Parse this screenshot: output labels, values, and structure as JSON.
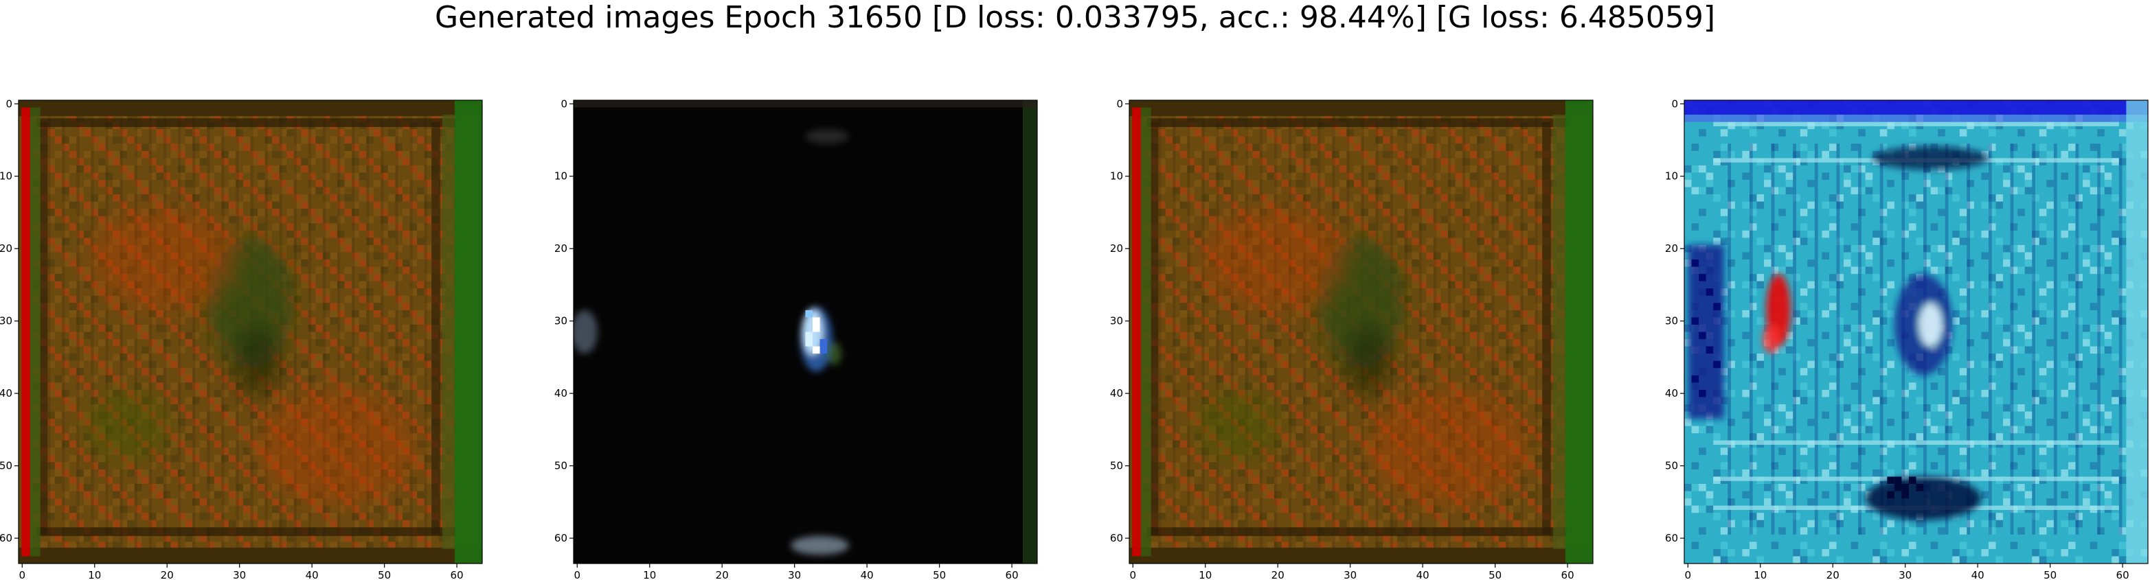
{
  "title": "Generated images Epoch 31650 [D loss: 0.033795, acc.: 98.44%] [G loss: 6.485059]",
  "panels": [
    {
      "scheme": "olive-red",
      "palette": {
        "base": "#6b4a10",
        "accent": "#c0400f",
        "edge_left": "#cc0000",
        "edge_right": "#1f6d12",
        "frame": "#3a2a08",
        "center": "#2f4a12"
      },
      "x_ticks": [
        0,
        10,
        20,
        30,
        40,
        50,
        60
      ],
      "y_ticks": [
        0,
        10,
        20,
        30,
        40,
        50,
        60
      ]
    },
    {
      "scheme": "dark-blob",
      "palette": {
        "base": "#050404",
        "blob": "#bfe4ff",
        "blob_core": "#ffffff",
        "blob_edge": "#2d5fa8",
        "edge_right": "#1a3a10",
        "edge_left": "#3a2020"
      },
      "x_ticks": [
        0,
        10,
        20,
        30,
        40,
        50,
        60
      ],
      "y_ticks": [
        0,
        10,
        20,
        30,
        40,
        50,
        60
      ]
    },
    {
      "scheme": "olive-red",
      "palette": {
        "base": "#6b4a10",
        "accent": "#c0400f",
        "edge_left": "#cc0000",
        "edge_right": "#1f6d12",
        "frame": "#3a2a08",
        "center": "#2f4a12"
      },
      "x_ticks": [
        0,
        10,
        20,
        30,
        40,
        50,
        60
      ],
      "y_ticks": [
        0,
        10,
        20,
        30,
        40,
        50,
        60
      ]
    },
    {
      "scheme": "cyan-blue",
      "palette": {
        "base": "#2fb0c8",
        "light": "#9fe6f0",
        "dark": "#0a1a8a",
        "top": "#1a1adc",
        "red": "#e01010",
        "navy": "#050a40"
      },
      "x_ticks": [
        0,
        10,
        20,
        30,
        40,
        50,
        60
      ],
      "y_ticks": [
        0,
        10,
        20,
        30,
        40,
        50,
        60
      ]
    }
  ]
}
